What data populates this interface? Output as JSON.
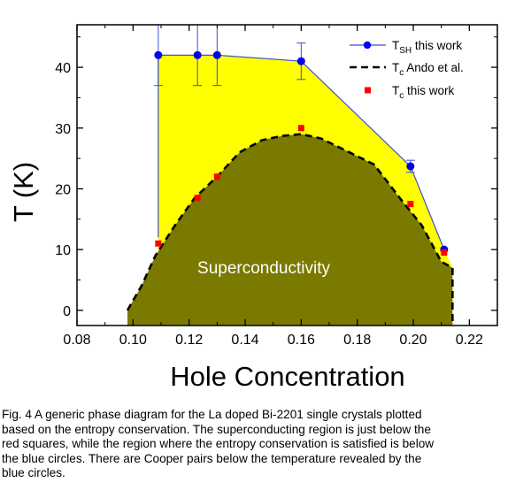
{
  "chart_data": {
    "type": "scatter",
    "xlabel": "Hole Concentration",
    "ylabel": "T (K)",
    "xlim": [
      0.08,
      0.23
    ],
    "ylim": [
      -2.5,
      47
    ],
    "xticks": [
      0.08,
      0.1,
      0.12,
      0.14,
      0.16,
      0.18,
      0.2,
      0.22
    ],
    "yticks": [
      0,
      10,
      20,
      30,
      40
    ],
    "xtick_labels": [
      "0.08",
      "0.10",
      "0.12",
      "0.14",
      "0.16",
      "0.18",
      "0.20",
      "0.22"
    ],
    "ytick_labels": [
      "0",
      "10",
      "20",
      "30",
      "40"
    ],
    "grid": false,
    "legend_position": "top-right",
    "series": [
      {
        "name": "T_SH this work",
        "legend_main": "T",
        "legend_sub": "SH",
        "legend_rest": " this work",
        "marker": "circle",
        "line": "solid",
        "color": "#0000ff",
        "line_color": "#3b4fd6",
        "x": [
          0.109,
          0.123,
          0.13,
          0.16,
          0.199,
          0.211
        ],
        "y": [
          42,
          42,
          42,
          41,
          23.7,
          10
        ],
        "yerr": [
          5,
          5,
          5,
          3,
          1,
          0
        ]
      },
      {
        "name": "Tc Ando et al.",
        "legend_main": "T",
        "legend_sub": "c",
        "legend_rest": " Ando et al.",
        "marker": "none",
        "line": "dashed",
        "color": "#000000",
        "x": [
          0.098,
          0.103,
          0.108,
          0.115,
          0.122,
          0.13,
          0.138,
          0.146,
          0.153,
          0.16,
          0.167,
          0.175,
          0.186,
          0.196,
          0.203,
          0.21,
          0.214
        ],
        "y": [
          0,
          4,
          9,
          14,
          18.5,
          22,
          26,
          28,
          28.7,
          29,
          28.3,
          26.5,
          24,
          18,
          14,
          8,
          7
        ]
      },
      {
        "name": "Tc this work",
        "legend_main": "T",
        "legend_sub": "c",
        "legend_rest": " this work",
        "marker": "square",
        "line": "none",
        "color": "#ff0000",
        "x": [
          0.109,
          0.123,
          0.13,
          0.16,
          0.199,
          0.211
        ],
        "y": [
          11,
          18.5,
          22,
          30,
          17.5,
          9.5
        ]
      }
    ],
    "regions": [
      {
        "name": "entropy conservation region",
        "color": "#ffff00"
      },
      {
        "name": "superconducting region",
        "color": "#7a7a00",
        "label": "Superconductivity"
      }
    ]
  },
  "caption": "Fig. 4 A generic phase diagram for the La doped Bi-2201 single crystals plotted\nbased on the entropy conservation. The superconducting region is just below the\nred squares, while the region where the entropy conservation is satisfied is below\nthe blue circles. There are Cooper pairs below the temperature revealed by the\nblue circles."
}
